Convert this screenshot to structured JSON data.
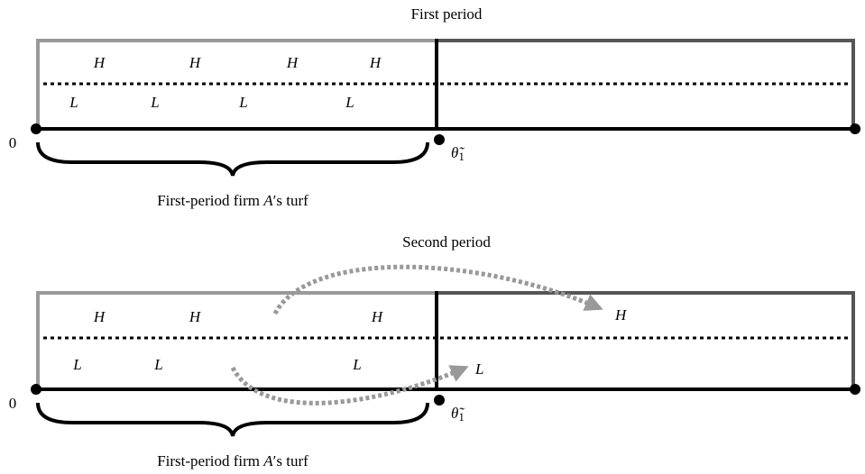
{
  "panels": [
    {
      "title": "First period",
      "h_labels": [
        "H",
        "H",
        "H",
        "H"
      ],
      "l_labels": [
        "L",
        "L",
        "L",
        "L"
      ],
      "origin_label": "0",
      "threshold": {
        "symbol": "θ̃",
        "subscript": "1"
      },
      "turf": {
        "prefix": "First-period firm ",
        "firm": "A",
        "suffix": "′s turf"
      }
    },
    {
      "title": "Second period",
      "h_labels": [
        "H",
        "H",
        "H"
      ],
      "l_labels": [
        "L",
        "L",
        "L"
      ],
      "moved": [
        "H",
        "L"
      ],
      "origin_label": "0",
      "threshold": {
        "symbol": "θ̃",
        "subscript": "1"
      },
      "turf": {
        "prefix": "First-period firm ",
        "firm": "A",
        "suffix": "′s turf"
      }
    }
  ]
}
